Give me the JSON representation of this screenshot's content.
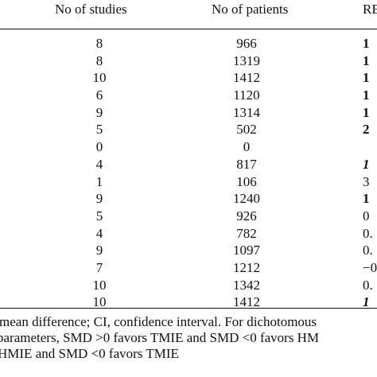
{
  "table": {
    "headers": {
      "studies": "No of studies",
      "patients": "No of patients",
      "re": "RE"
    },
    "rows": [
      {
        "studies": "8",
        "patients": "966",
        "re": "1"
      },
      {
        "studies": "8",
        "patients": "1319",
        "re": "1"
      },
      {
        "studies": "10",
        "patients": "1412",
        "re": "1"
      },
      {
        "studies": "6",
        "patients": "1120",
        "re": "1"
      },
      {
        "studies": "9",
        "patients": "1314",
        "re": "1"
      },
      {
        "studies": "5",
        "patients": "502",
        "re": "2"
      },
      {
        "studies": "0",
        "patients": "0",
        "re": ""
      },
      {
        "studies": "4",
        "patients": "817",
        "re": "1"
      },
      {
        "studies": "1",
        "patients": "106",
        "re": "3"
      },
      {
        "studies": "9",
        "patients": "1240",
        "re": "1"
      },
      {
        "studies": "5",
        "patients": "926",
        "re": "0"
      },
      {
        "studies": "4",
        "patients": "782",
        "re": "0."
      },
      {
        "studies": "9",
        "patients": "1097",
        "re": "0."
      },
      {
        "studies": "7",
        "patients": "1212",
        "re": "−0"
      },
      {
        "studies": "10",
        "patients": "1342",
        "re": "0."
      },
      {
        "studies": "10",
        "patients": "1412",
        "re": "1"
      }
    ]
  },
  "footnotes": {
    "line1": "mean difference; CI, confidence interval. For dichotomous",
    "line2": "parameters, SMD >0 favors TMIE and SMD <0 favors HM",
    "line3": "HMIE and SMD <0 favors TMIE"
  }
}
